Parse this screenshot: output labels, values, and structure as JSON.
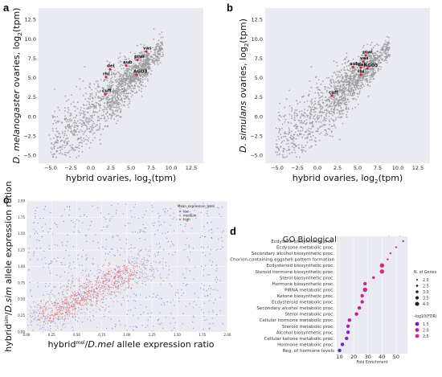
{
  "panels": [
    {
      "letter": "a"
    },
    {
      "letter": "b"
    },
    {
      "letter": "c"
    },
    {
      "letter": "d"
    }
  ],
  "chart_data": [
    {
      "id": "a",
      "type": "scatter",
      "xlabel": "hybrid ovaries, log",
      "xlabel_sub": "2",
      "xlabel_end": "(tpm)",
      "ylabel_pre": "",
      "ylabel_species": "D. melanogaster",
      "ylabel_rest": " ovaries, log",
      "ylabel_sub": "2",
      "ylabel_end": "(tpm)",
      "xlim": [
        -6.5,
        14
      ],
      "ylim": [
        -6,
        14
      ],
      "xticks": [
        -5.0,
        -2.5,
        0.0,
        2.5,
        5.0,
        7.5,
        10.0,
        12.5
      ],
      "xtick_labels": [
        "−5.0",
        "−2.5",
        "0.0",
        "2.5",
        "5.0",
        "7.5",
        "10.0",
        "12.5"
      ],
      "yticks": [
        -5.0,
        -2.5,
        0.0,
        2.5,
        5.0,
        7.5,
        10.0,
        12.5
      ],
      "ytick_labels": [
        "−5.0",
        "−2.5",
        "0.0",
        "2.5",
        "5.0",
        "7.5",
        "10.0",
        "12.5"
      ],
      "background": "#eaeaf2",
      "point_color": "#9a9a9a",
      "highlight_color": "#e0203a",
      "genes": [
        {
          "label": "vas",
          "x": 6.9,
          "y": 8.4
        },
        {
          "label": "piwi",
          "x": 5.8,
          "y": 7.3
        },
        {
          "label": "aub",
          "x": 4.4,
          "y": 6.6
        },
        {
          "label": "AGO3",
          "x": 5.7,
          "y": 5.4
        },
        {
          "label": "del",
          "x": 2.4,
          "y": 6.1
        },
        {
          "label": "rhi",
          "x": 1.9,
          "y": 5.1
        },
        {
          "label": "cuff",
          "x": 1.8,
          "y": 2.9
        }
      ]
    },
    {
      "id": "b",
      "type": "scatter",
      "xlabel": "hybrid ovaries, log",
      "xlabel_sub": "2",
      "xlabel_end": "(tpm)",
      "ylabel_pre": "",
      "ylabel_species": "D. simulans",
      "ylabel_rest": " ovaries, log",
      "ylabel_sub": "2",
      "ylabel_end": "(tpm)",
      "xlim": [
        -6.5,
        14
      ],
      "ylim": [
        -6,
        14
      ],
      "xticks": [
        -5.0,
        -2.5,
        0.0,
        2.5,
        5.0,
        7.5,
        10.0,
        12.5
      ],
      "xtick_labels": [
        "−5.0",
        "−2.5",
        "0.0",
        "2.5",
        "5.0",
        "7.5",
        "10.0",
        "12.5"
      ],
      "yticks": [
        -5.0,
        -2.5,
        0.0,
        2.5,
        5.0,
        7.5,
        10.0,
        12.5
      ],
      "ytick_labels": [
        "−5.0",
        "−2.5",
        "0.0",
        "2.5",
        "5.0",
        "7.5",
        "10.0",
        "12.5"
      ],
      "background": "#eaeaf2",
      "point_color": "#9a9a9a",
      "highlight_color": "#e0203a",
      "genes": [
        {
          "label": "piwi",
          "x": 6.0,
          "y": 7.9
        },
        {
          "label": "vas",
          "x": 5.7,
          "y": 7.1
        },
        {
          "label": "aub",
          "x": 4.4,
          "y": 6.4
        },
        {
          "label": "del",
          "x": 5.4,
          "y": 6.3
        },
        {
          "label": "AGO3",
          "x": 6.2,
          "y": 6.2
        },
        {
          "label": "rhi",
          "x": 5.4,
          "y": 5.4
        },
        {
          "label": "cuff",
          "x": 1.8,
          "y": 2.7
        }
      ]
    },
    {
      "id": "c",
      "type": "scatter",
      "xlabel_pre": "hybrid",
      "xlabel_sup": "mel",
      "xlabel_mid": "/",
      "xlabel_species": "D.mel",
      "xlabel_end": " allele expression ratio",
      "ylabel_pre": "hybrid",
      "ylabel_sup": "sim",
      "ylabel_mid": "/",
      "ylabel_species": "D.sim",
      "ylabel_end": " allele expression ration",
      "xlim": [
        0,
        2
      ],
      "ylim": [
        0,
        2
      ],
      "xticks": [
        0.0,
        0.25,
        0.5,
        0.75,
        1.0,
        1.25,
        1.5,
        1.75,
        2.0
      ],
      "xtick_labels": [
        "0.00",
        "0.25",
        "0.50",
        "0.75",
        "1.00",
        "1.25",
        "1.50",
        "1.75",
        "2.00"
      ],
      "yticks": [
        0.0,
        0.25,
        0.5,
        0.75,
        1.0,
        1.25,
        1.5,
        1.75,
        2.0
      ],
      "ytick_labels": [
        "0.00",
        "0.25",
        "0.50",
        "0.75",
        "1.00",
        "1.25",
        "1.50",
        "1.75",
        "2.00"
      ],
      "background": "#eaeaf2",
      "legend": {
        "title": "Mean_expression_level",
        "placement": "top-right",
        "entries": [
          {
            "label": "low",
            "color": "#7a7fd0"
          },
          {
            "label": "medium",
            "color": "#b9b0c8"
          },
          {
            "label": "high",
            "color": "#ef6f6f"
          }
        ]
      }
    },
    {
      "id": "d",
      "type": "scatter",
      "title": "GO Biological Process Analysis",
      "xlabel": "Fold Enrichment",
      "xlim": [
        8,
        58
      ],
      "xticks": [
        10,
        20,
        30,
        40,
        50
      ],
      "xtick_labels": [
        "10",
        "20",
        "30",
        "40",
        "50"
      ],
      "background": "#eaeaf2",
      "categories": [
        "Ecdysone biosynthetic proc.",
        "Ecdysone metabolic proc.",
        "Secondary alcohol biosynthetic proc.",
        "Chorion-containing eggshell pattern formation",
        "Ecdysteroid biosynthetic proc.",
        "Steroid hormone biosynthetic proc.",
        "Sterol biosynthetic proc.",
        "Hormone biosynthetic proc.",
        "PiRNA metabolic proc.",
        "Ketone biosynthetic proc.",
        "Ecdysteroid metabolic proc.",
        "Secondary alcohol metabolic proc.",
        "Sterol metabolic proc.",
        "Cellular hormone metabolic proc.",
        "Steroid metabolic proc.",
        "Alcohol biosynthetic proc.",
        "Cellular ketone metabolic proc.",
        "Hormone metabolic proc.",
        "Reg. of hormone levels"
      ],
      "fold_enrichment": [
        55,
        50,
        46,
        44,
        40,
        40,
        34,
        28,
        28,
        26,
        26,
        24,
        22,
        17,
        16,
        16,
        15,
        12,
        10
      ],
      "n_genes": [
        2.0,
        2.0,
        2.0,
        2.0,
        3.5,
        3.5,
        2.5,
        3.0,
        3.5,
        3.0,
        3.0,
        3.0,
        3.0,
        3.0,
        3.0,
        3.0,
        3.0,
        3.0,
        3.0
      ],
      "neg_log10_fdr": [
        2.5,
        2.5,
        2.5,
        2.5,
        2.5,
        2.5,
        2.4,
        2.3,
        2.3,
        2.3,
        2.3,
        2.2,
        2.2,
        2.0,
        2.0,
        1.8,
        1.8,
        1.6,
        1.5
      ],
      "size_legend": {
        "title": "N. of Genes",
        "values": [
          2.0,
          2.5,
          3.0,
          3.5,
          4.0
        ],
        "labels": [
          "2.0",
          "2.5",
          "3.0",
          "3.5",
          "4.0"
        ]
      },
      "color_legend": {
        "title": "-log10(FDR)",
        "values": [
          1.5,
          2.0,
          2.5
        ],
        "labels": [
          "1.5",
          "2.0",
          "2.5"
        ],
        "colors": [
          "#6a1fd6",
          "#b11fb4",
          "#e8247a"
        ]
      }
    }
  ]
}
